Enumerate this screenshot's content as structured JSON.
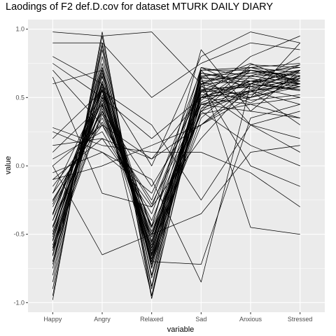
{
  "chart_data": {
    "type": "line",
    "title": "Laodings of F2 def.D.cov for dataset MTURK DAILY DIARY",
    "xlabel": "variable",
    "ylabel": "value",
    "categories": [
      "Happy",
      "Angry",
      "Relaxed",
      "Sad",
      "Anxious",
      "Stressed"
    ],
    "yticks": [
      1.0,
      0.5,
      0.0,
      -0.5,
      -1.0
    ],
    "ytick_labels": [
      "1.0",
      "0.5",
      "0.0",
      "-0.5",
      "-1.0"
    ],
    "ylim": [
      -1.07,
      1.07
    ],
    "grid": true,
    "legend": "none",
    "line_color": "#000000",
    "panel_color": "#ebebeb",
    "series": [
      {
        "values": [
          -0.45,
          0.62,
          -0.55,
          0.5,
          0.62,
          0.6
        ]
      },
      {
        "values": [
          -0.55,
          0.55,
          -0.65,
          0.42,
          0.55,
          0.7
        ]
      },
      {
        "values": [
          -0.35,
          0.48,
          -0.5,
          0.55,
          0.7,
          0.65
        ]
      },
      {
        "values": [
          -0.65,
          0.7,
          -0.72,
          0.6,
          0.5,
          0.58
        ]
      },
      {
        "values": [
          -0.25,
          0.35,
          -0.45,
          0.38,
          0.45,
          0.5
        ]
      },
      {
        "values": [
          -0.75,
          0.8,
          -0.8,
          0.7,
          0.72,
          0.75
        ]
      },
      {
        "values": [
          -0.5,
          0.5,
          -0.6,
          0.3,
          0.6,
          0.55
        ]
      },
      {
        "values": [
          -0.6,
          0.45,
          -0.7,
          0.65,
          0.58,
          0.62
        ]
      },
      {
        "values": [
          -0.4,
          0.65,
          -0.48,
          0.45,
          0.4,
          0.7
        ]
      },
      {
        "values": [
          -0.3,
          0.4,
          -0.55,
          0.6,
          0.75,
          0.6
        ]
      },
      {
        "values": [
          -0.85,
          0.9,
          -0.88,
          0.72,
          0.65,
          0.7
        ]
      },
      {
        "values": [
          -0.7,
          0.58,
          -0.62,
          0.5,
          0.55,
          0.45
        ]
      },
      {
        "values": [
          -0.2,
          0.3,
          -0.4,
          0.5,
          0.62,
          0.68
        ]
      },
      {
        "values": [
          -0.55,
          0.75,
          -0.75,
          0.58,
          0.68,
          0.72
        ]
      },
      {
        "values": [
          -0.45,
          0.52,
          -0.58,
          0.62,
          0.48,
          0.52
        ]
      },
      {
        "values": [
          -0.35,
          0.6,
          -0.68,
          0.4,
          0.7,
          0.66
        ]
      },
      {
        "values": [
          -0.62,
          0.38,
          -0.52,
          0.68,
          0.6,
          0.56
        ]
      },
      {
        "values": [
          -0.48,
          0.72,
          -0.8,
          0.55,
          0.52,
          0.64
        ]
      },
      {
        "values": [
          -0.72,
          0.62,
          -0.66,
          0.35,
          0.66,
          0.6
        ]
      },
      {
        "values": [
          -0.28,
          0.46,
          -0.44,
          0.72,
          0.56,
          0.7
        ]
      },
      {
        "values": [
          -0.58,
          0.56,
          -0.7,
          0.48,
          0.72,
          0.62
        ]
      },
      {
        "values": [
          -0.4,
          0.42,
          -0.6,
          0.64,
          0.64,
          0.58
        ]
      },
      {
        "values": [
          -0.66,
          0.68,
          -0.56,
          0.56,
          0.58,
          0.74
        ]
      },
      {
        "values": [
          -0.52,
          0.6,
          -0.64,
          0.52,
          0.5,
          0.66
        ]
      },
      {
        "values": [
          -0.1,
          0.2,
          -0.3,
          0.6,
          0.7,
          0.62
        ]
      },
      {
        "values": [
          -0.8,
          0.85,
          -0.9,
          0.68,
          0.62,
          0.55
        ]
      },
      {
        "values": [
          -0.95,
          0.95,
          -0.95,
          0.7,
          0.7,
          0.6
        ]
      },
      {
        "values": [
          -0.98,
          0.98,
          -0.97,
          0.6,
          0.62,
          0.64
        ]
      },
      {
        "values": [
          -0.9,
          0.88,
          -0.82,
          0.5,
          0.55,
          0.58
        ]
      },
      {
        "values": [
          -0.05,
          0.1,
          -0.2,
          0.55,
          0.6,
          0.7
        ]
      },
      {
        "values": [
          0.05,
          0.25,
          -0.35,
          0.65,
          0.72,
          0.68
        ]
      },
      {
        "values": [
          -0.15,
          0.32,
          -0.28,
          0.45,
          0.5,
          0.6
        ]
      },
      {
        "values": [
          -0.7,
          0.72,
          -0.74,
          0.42,
          0.74,
          0.72
        ]
      },
      {
        "values": [
          -0.36,
          0.56,
          -0.62,
          0.58,
          0.46,
          0.64
        ]
      },
      {
        "values": [
          -0.62,
          0.66,
          -0.7,
          0.66,
          0.68,
          0.62
        ]
      },
      {
        "values": [
          -0.44,
          0.44,
          -0.52,
          0.5,
          0.6,
          0.56
        ]
      },
      {
        "values": [
          -0.26,
          0.4,
          -0.5,
          0.4,
          0.54,
          0.66
        ]
      },
      {
        "values": [
          -0.54,
          0.5,
          -0.58,
          0.62,
          0.66,
          0.74
        ]
      },
      {
        "values": [
          -0.6,
          0.6,
          -0.68,
          0.54,
          0.58,
          0.5
        ]
      },
      {
        "values": [
          -0.5,
          0.58,
          -0.72,
          0.46,
          0.62,
          0.6
        ]
      },
      {
        "values": [
          0.98,
          0.95,
          0.98,
          0.6,
          0.7,
          0.65
        ]
      },
      {
        "values": [
          0.9,
          0.9,
          0.5,
          0.75,
          0.9,
          0.85
        ]
      },
      {
        "values": [
          0.8,
          0.6,
          0.0,
          0.8,
          0.98,
          0.9
        ]
      },
      {
        "values": [
          0.75,
          0.5,
          0.2,
          0.5,
          0.8,
          0.95
        ]
      },
      {
        "values": [
          0.7,
          0.3,
          0.05,
          0.3,
          0.5,
          0.9
        ]
      },
      {
        "values": [
          0.65,
          -0.2,
          -0.3,
          0.2,
          0.6,
          0.8
        ]
      },
      {
        "values": [
          0.2,
          0.55,
          0.3,
          -0.25,
          0.3,
          0.2
        ]
      },
      {
        "values": [
          0.25,
          0.1,
          -0.1,
          -0.85,
          0.6,
          0.7
        ]
      },
      {
        "values": [
          0.15,
          0.2,
          0.05,
          0.5,
          0.45,
          0.35
        ]
      },
      {
        "values": [
          0.0,
          -0.65,
          -0.5,
          -0.35,
          0.1,
          0.15
        ]
      },
      {
        "values": [
          -0.1,
          0.0,
          0.15,
          0.3,
          0.55,
          0.6
        ]
      },
      {
        "values": [
          0.28,
          0.15,
          0.1,
          0.1,
          -0.05,
          -0.3
        ]
      },
      {
        "values": [
          0.6,
          0.7,
          -0.65,
          0.65,
          -0.45,
          -0.5
        ]
      },
      {
        "values": [
          -0.45,
          0.5,
          -0.55,
          0.4,
          0.15,
          0.0
        ]
      },
      {
        "values": [
          -0.35,
          0.6,
          -0.7,
          -0.72,
          0.35,
          0.45
        ]
      },
      {
        "values": [
          0.1,
          0.45,
          -0.6,
          0.6,
          0.0,
          -0.15
        ]
      },
      {
        "values": [
          -0.2,
          0.55,
          -0.95,
          0.55,
          0.3,
          0.1
        ]
      },
      {
        "values": [
          -0.6,
          0.4,
          -0.15,
          0.45,
          0.55,
          0.3
        ]
      },
      {
        "values": [
          -0.5,
          0.55,
          -0.45,
          0.85,
          0.4,
          0.35
        ]
      },
      {
        "values": [
          0.0,
          0.3,
          -0.25,
          0.7,
          0.3,
          0.4
        ]
      }
    ]
  }
}
